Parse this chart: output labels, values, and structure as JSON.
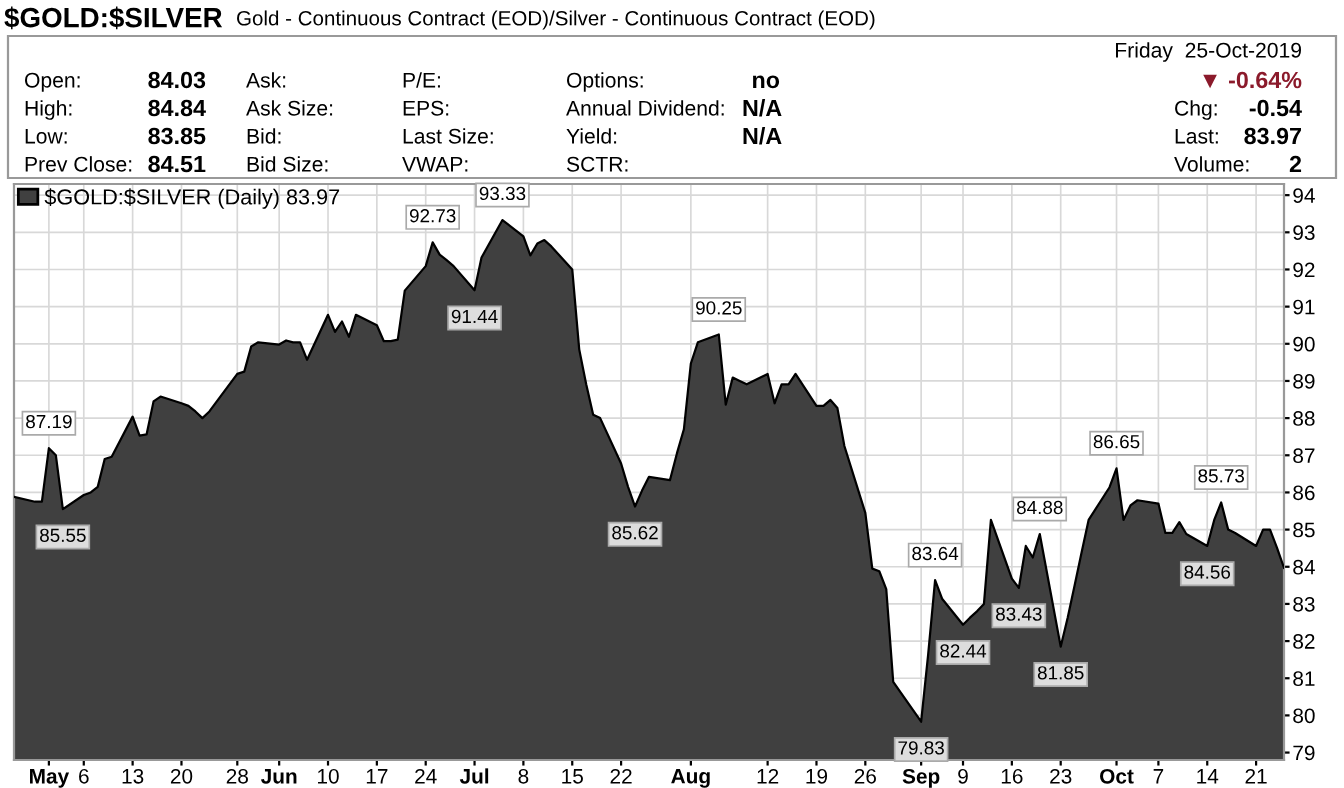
{
  "chart_data": {
    "type": "area",
    "title": "$GOLD:$SILVER",
    "subtitle": "Gold - Continuous Contract (EOD)/Silver - Continuous Contract (EOD)",
    "x": [
      "2019-04-26",
      "2019-04-29",
      "2019-04-30",
      "2019-05-01",
      "2019-05-02",
      "2019-05-03",
      "2019-05-06",
      "2019-05-07",
      "2019-05-08",
      "2019-05-09",
      "2019-05-10",
      "2019-05-13",
      "2019-05-14",
      "2019-05-15",
      "2019-05-16",
      "2019-05-17",
      "2019-05-20",
      "2019-05-21",
      "2019-05-22",
      "2019-05-23",
      "2019-05-24",
      "2019-05-28",
      "2019-05-29",
      "2019-05-30",
      "2019-05-31",
      "2019-06-03",
      "2019-06-04",
      "2019-06-05",
      "2019-06-06",
      "2019-06-07",
      "2019-06-10",
      "2019-06-11",
      "2019-06-12",
      "2019-06-13",
      "2019-06-14",
      "2019-06-17",
      "2019-06-18",
      "2019-06-19",
      "2019-06-20",
      "2019-06-21",
      "2019-06-24",
      "2019-06-25",
      "2019-06-26",
      "2019-06-27",
      "2019-06-28",
      "2019-07-01",
      "2019-07-02",
      "2019-07-03",
      "2019-07-05",
      "2019-07-08",
      "2019-07-09",
      "2019-07-10",
      "2019-07-11",
      "2019-07-12",
      "2019-07-15",
      "2019-07-16",
      "2019-07-17",
      "2019-07-18",
      "2019-07-19",
      "2019-07-22",
      "2019-07-23",
      "2019-07-24",
      "2019-07-25",
      "2019-07-26",
      "2019-07-29",
      "2019-07-30",
      "2019-07-31",
      "2019-08-01",
      "2019-08-02",
      "2019-08-05",
      "2019-08-06",
      "2019-08-07",
      "2019-08-08",
      "2019-08-09",
      "2019-08-12",
      "2019-08-13",
      "2019-08-14",
      "2019-08-15",
      "2019-08-16",
      "2019-08-19",
      "2019-08-20",
      "2019-08-21",
      "2019-08-22",
      "2019-08-23",
      "2019-08-26",
      "2019-08-27",
      "2019-08-28",
      "2019-08-29",
      "2019-08-30",
      "2019-09-03",
      "2019-09-04",
      "2019-09-05",
      "2019-09-06",
      "2019-09-09",
      "2019-09-10",
      "2019-09-11",
      "2019-09-12",
      "2019-09-13",
      "2019-09-16",
      "2019-09-17",
      "2019-09-18",
      "2019-09-19",
      "2019-09-20",
      "2019-09-23",
      "2019-09-24",
      "2019-09-25",
      "2019-09-26",
      "2019-09-27",
      "2019-09-30",
      "2019-10-01",
      "2019-10-02",
      "2019-10-03",
      "2019-10-04",
      "2019-10-07",
      "2019-10-08",
      "2019-10-09",
      "2019-10-10",
      "2019-10-11",
      "2019-10-14",
      "2019-10-15",
      "2019-10-16",
      "2019-10-17",
      "2019-10-18",
      "2019-10-21",
      "2019-10-22",
      "2019-10-23",
      "2019-10-24",
      "2019-10-25"
    ],
    "series": [
      {
        "name": "$GOLD:$SILVER (Daily) 83.97",
        "color": "#404040",
        "values": [
          85.88,
          85.75,
          85.75,
          87.19,
          87.0,
          85.55,
          85.93,
          86.0,
          86.15,
          86.9,
          86.96,
          88.04,
          87.53,
          87.56,
          88.45,
          88.58,
          88.4,
          88.33,
          88.18,
          88.0,
          88.18,
          89.19,
          89.25,
          89.93,
          90.04,
          89.98,
          90.09,
          90.04,
          90.04,
          89.57,
          90.78,
          90.32,
          90.6,
          90.19,
          90.78,
          90.5,
          90.07,
          90.07,
          90.11,
          91.43,
          92.09,
          92.73,
          92.4,
          92.25,
          92.09,
          91.44,
          92.32,
          92.66,
          93.33,
          92.89,
          92.38,
          92.7,
          92.79,
          92.62,
          92.0,
          89.85,
          88.91,
          88.09,
          88.0,
          86.78,
          86.15,
          85.62,
          86.05,
          86.42,
          86.33,
          87.05,
          87.7,
          89.47,
          90.04,
          90.25,
          88.36,
          89.09,
          89.0,
          88.91,
          89.19,
          88.4,
          88.91,
          88.91,
          89.19,
          88.33,
          88.33,
          88.49,
          88.27,
          87.25,
          85.45,
          83.95,
          83.88,
          83.4,
          80.9,
          79.83,
          81.63,
          83.64,
          83.14,
          82.44,
          82.63,
          82.8,
          83.0,
          85.26,
          83.68,
          83.43,
          84.56,
          84.25,
          84.88,
          81.85,
          82.63,
          83.5,
          84.39,
          85.26,
          86.14,
          86.65,
          85.26,
          85.65,
          85.79,
          85.7,
          84.91,
          84.91,
          85.2,
          84.88,
          84.56,
          85.26,
          85.73,
          85.0,
          84.91,
          84.56,
          85.0,
          85.0,
          84.51,
          83.97
        ]
      }
    ],
    "xlim": [
      "2019-04-26",
      "2019-10-25"
    ],
    "xticks": [
      {
        "value": "2019-05-01",
        "label": "May"
      },
      {
        "value": "2019-05-06",
        "label": "6"
      },
      {
        "value": "2019-05-13",
        "label": "13"
      },
      {
        "value": "2019-05-20",
        "label": "20"
      },
      {
        "value": "2019-05-28",
        "label": "28"
      },
      {
        "value": "2019-06-03",
        "label": "Jun"
      },
      {
        "value": "2019-06-10",
        "label": "10"
      },
      {
        "value": "2019-06-17",
        "label": "17"
      },
      {
        "value": "2019-06-24",
        "label": "24"
      },
      {
        "value": "2019-07-01",
        "label": "Jul"
      },
      {
        "value": "2019-07-08",
        "label": "8"
      },
      {
        "value": "2019-07-15",
        "label": "15"
      },
      {
        "value": "2019-07-22",
        "label": "22"
      },
      {
        "value": "2019-08-01",
        "label": "Aug"
      },
      {
        "value": "2019-08-12",
        "label": "12"
      },
      {
        "value": "2019-08-19",
        "label": "19"
      },
      {
        "value": "2019-08-26",
        "label": "26"
      },
      {
        "value": "2019-09-03",
        "label": "Sep"
      },
      {
        "value": "2019-09-09",
        "label": "9"
      },
      {
        "value": "2019-09-16",
        "label": "16"
      },
      {
        "value": "2019-09-23",
        "label": "23"
      },
      {
        "value": "2019-10-01",
        "label": "Oct"
      },
      {
        "value": "2019-10-07",
        "label": "7"
      },
      {
        "value": "2019-10-14",
        "label": "14"
      },
      {
        "value": "2019-10-21",
        "label": "21"
      }
    ],
    "ylim": [
      78.8,
      94.3
    ],
    "yticks": [
      79,
      80,
      81,
      82,
      83,
      84,
      85,
      86,
      87,
      88,
      89,
      90,
      91,
      92,
      93,
      94
    ],
    "grid": true,
    "legend": "top left",
    "annotations": [
      "Open:",
      "84.03",
      "High:",
      "84.84",
      "Low:",
      "83.85",
      "Prev Close:",
      "84.51",
      "Ask:",
      "Ask Size:",
      "Bid:",
      "Bid Size:",
      "P/E:",
      "EPS:",
      "Last Size:",
      "VWAP:",
      "Options:",
      "no",
      "Annual Dividend:",
      "N/A",
      "Yield:",
      "N/A",
      "SCTR:",
      "Friday  25-Oct-2019",
      "▼ -0.64%",
      "Chg:",
      "-0.54",
      "Last:",
      "83.97",
      "Volume:",
      "2",
      {
        "text": "87.19",
        "x": "2019-05-01",
        "y": 87.19
      },
      {
        "text": "85.55",
        "x": "2019-05-03",
        "y": 85.55
      },
      {
        "text": "92.73",
        "x": "2019-06-25",
        "y": 92.73
      },
      {
        "text": "91.44",
        "x": "2019-07-01",
        "y": 91.44
      },
      {
        "text": "93.33",
        "x": "2019-07-05",
        "y": 93.33
      },
      {
        "text": "85.62",
        "x": "2019-07-24",
        "y": 85.62
      },
      {
        "text": "90.25",
        "x": "2019-08-05",
        "y": 90.25
      },
      {
        "text": "79.83",
        "x": "2019-09-03",
        "y": 79.83
      },
      {
        "text": "83.64",
        "x": "2019-09-05",
        "y": 83.64
      },
      {
        "text": "82.44",
        "x": "2019-09-09",
        "y": 82.44
      },
      {
        "text": "83.43",
        "x": "2019-09-17",
        "y": 83.43
      },
      {
        "text": "84.88",
        "x": "2019-09-20",
        "y": 84.88
      },
      {
        "text": "81.85",
        "x": "2019-09-23",
        "y": 81.85
      },
      {
        "text": "86.65",
        "x": "2019-10-01",
        "y": 86.65
      },
      {
        "text": "84.56",
        "x": "2019-10-14",
        "y": 84.56
      },
      {
        "text": "85.73",
        "x": "2019-10-16",
        "y": 85.73
      }
    ]
  }
}
